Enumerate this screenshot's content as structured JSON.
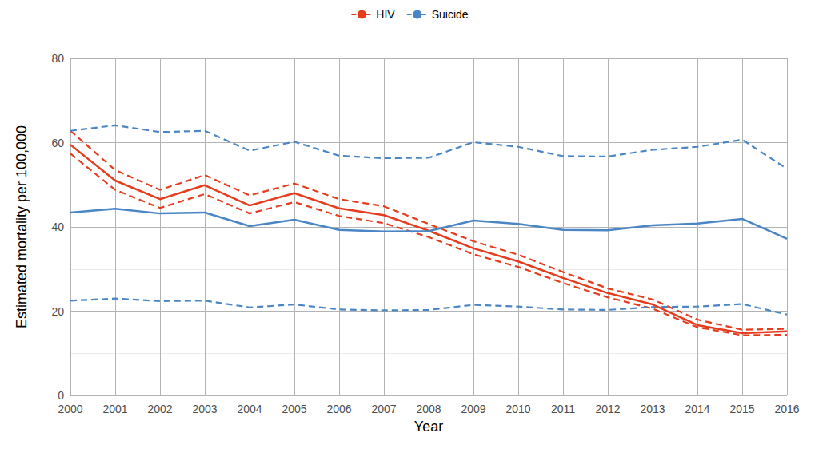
{
  "chart_data": {
    "type": "line",
    "x_label": "Year",
    "y_label": "Estimated mortality per 100,000",
    "categories": [
      "2000",
      "2001",
      "2002",
      "2003",
      "2004",
      "2005",
      "2006",
      "2007",
      "2008",
      "2009",
      "2010",
      "2011",
      "2012",
      "2013",
      "2014",
      "2015",
      "2016"
    ],
    "series": [
      {
        "name": "HIV",
        "color": "#e63c1e",
        "values": [
          59.5,
          51.0,
          46.6,
          49.9,
          45.1,
          48.0,
          44.4,
          42.8,
          39.1,
          34.9,
          31.8,
          27.9,
          24.3,
          21.6,
          16.7,
          14.8,
          15.2
        ],
        "upper": [
          62.8,
          53.5,
          48.8,
          52.3,
          47.5,
          50.3,
          46.6,
          44.9,
          40.7,
          36.6,
          33.4,
          29.3,
          25.4,
          22.8,
          18.0,
          15.6,
          15.8
        ],
        "lower": [
          57.4,
          48.8,
          44.5,
          47.8,
          43.2,
          45.9,
          42.6,
          40.9,
          37.6,
          33.5,
          30.5,
          26.7,
          23.3,
          20.6,
          16.2,
          14.3,
          14.4
        ]
      },
      {
        "name": "Suicide",
        "color": "#4a86c5",
        "values": [
          43.4,
          44.3,
          43.2,
          43.4,
          40.2,
          41.7,
          39.3,
          38.9,
          39.0,
          41.5,
          40.7,
          39.3,
          39.2,
          40.4,
          40.8,
          41.9,
          37.2
        ],
        "upper": [
          62.8,
          64.1,
          62.5,
          62.8,
          58.1,
          60.2,
          56.9,
          56.3,
          56.4,
          60.1,
          59.0,
          56.8,
          56.7,
          58.3,
          59.0,
          60.7,
          53.8
        ],
        "lower": [
          22.5,
          23.0,
          22.4,
          22.5,
          20.9,
          21.6,
          20.4,
          20.2,
          20.3,
          21.5,
          21.1,
          20.4,
          20.3,
          21.0,
          21.1,
          21.7,
          19.2
        ]
      }
    ],
    "ylim": [
      0,
      80
    ],
    "yticks": [
      0,
      20,
      40,
      60,
      80
    ],
    "grid": true,
    "legend": "top"
  }
}
